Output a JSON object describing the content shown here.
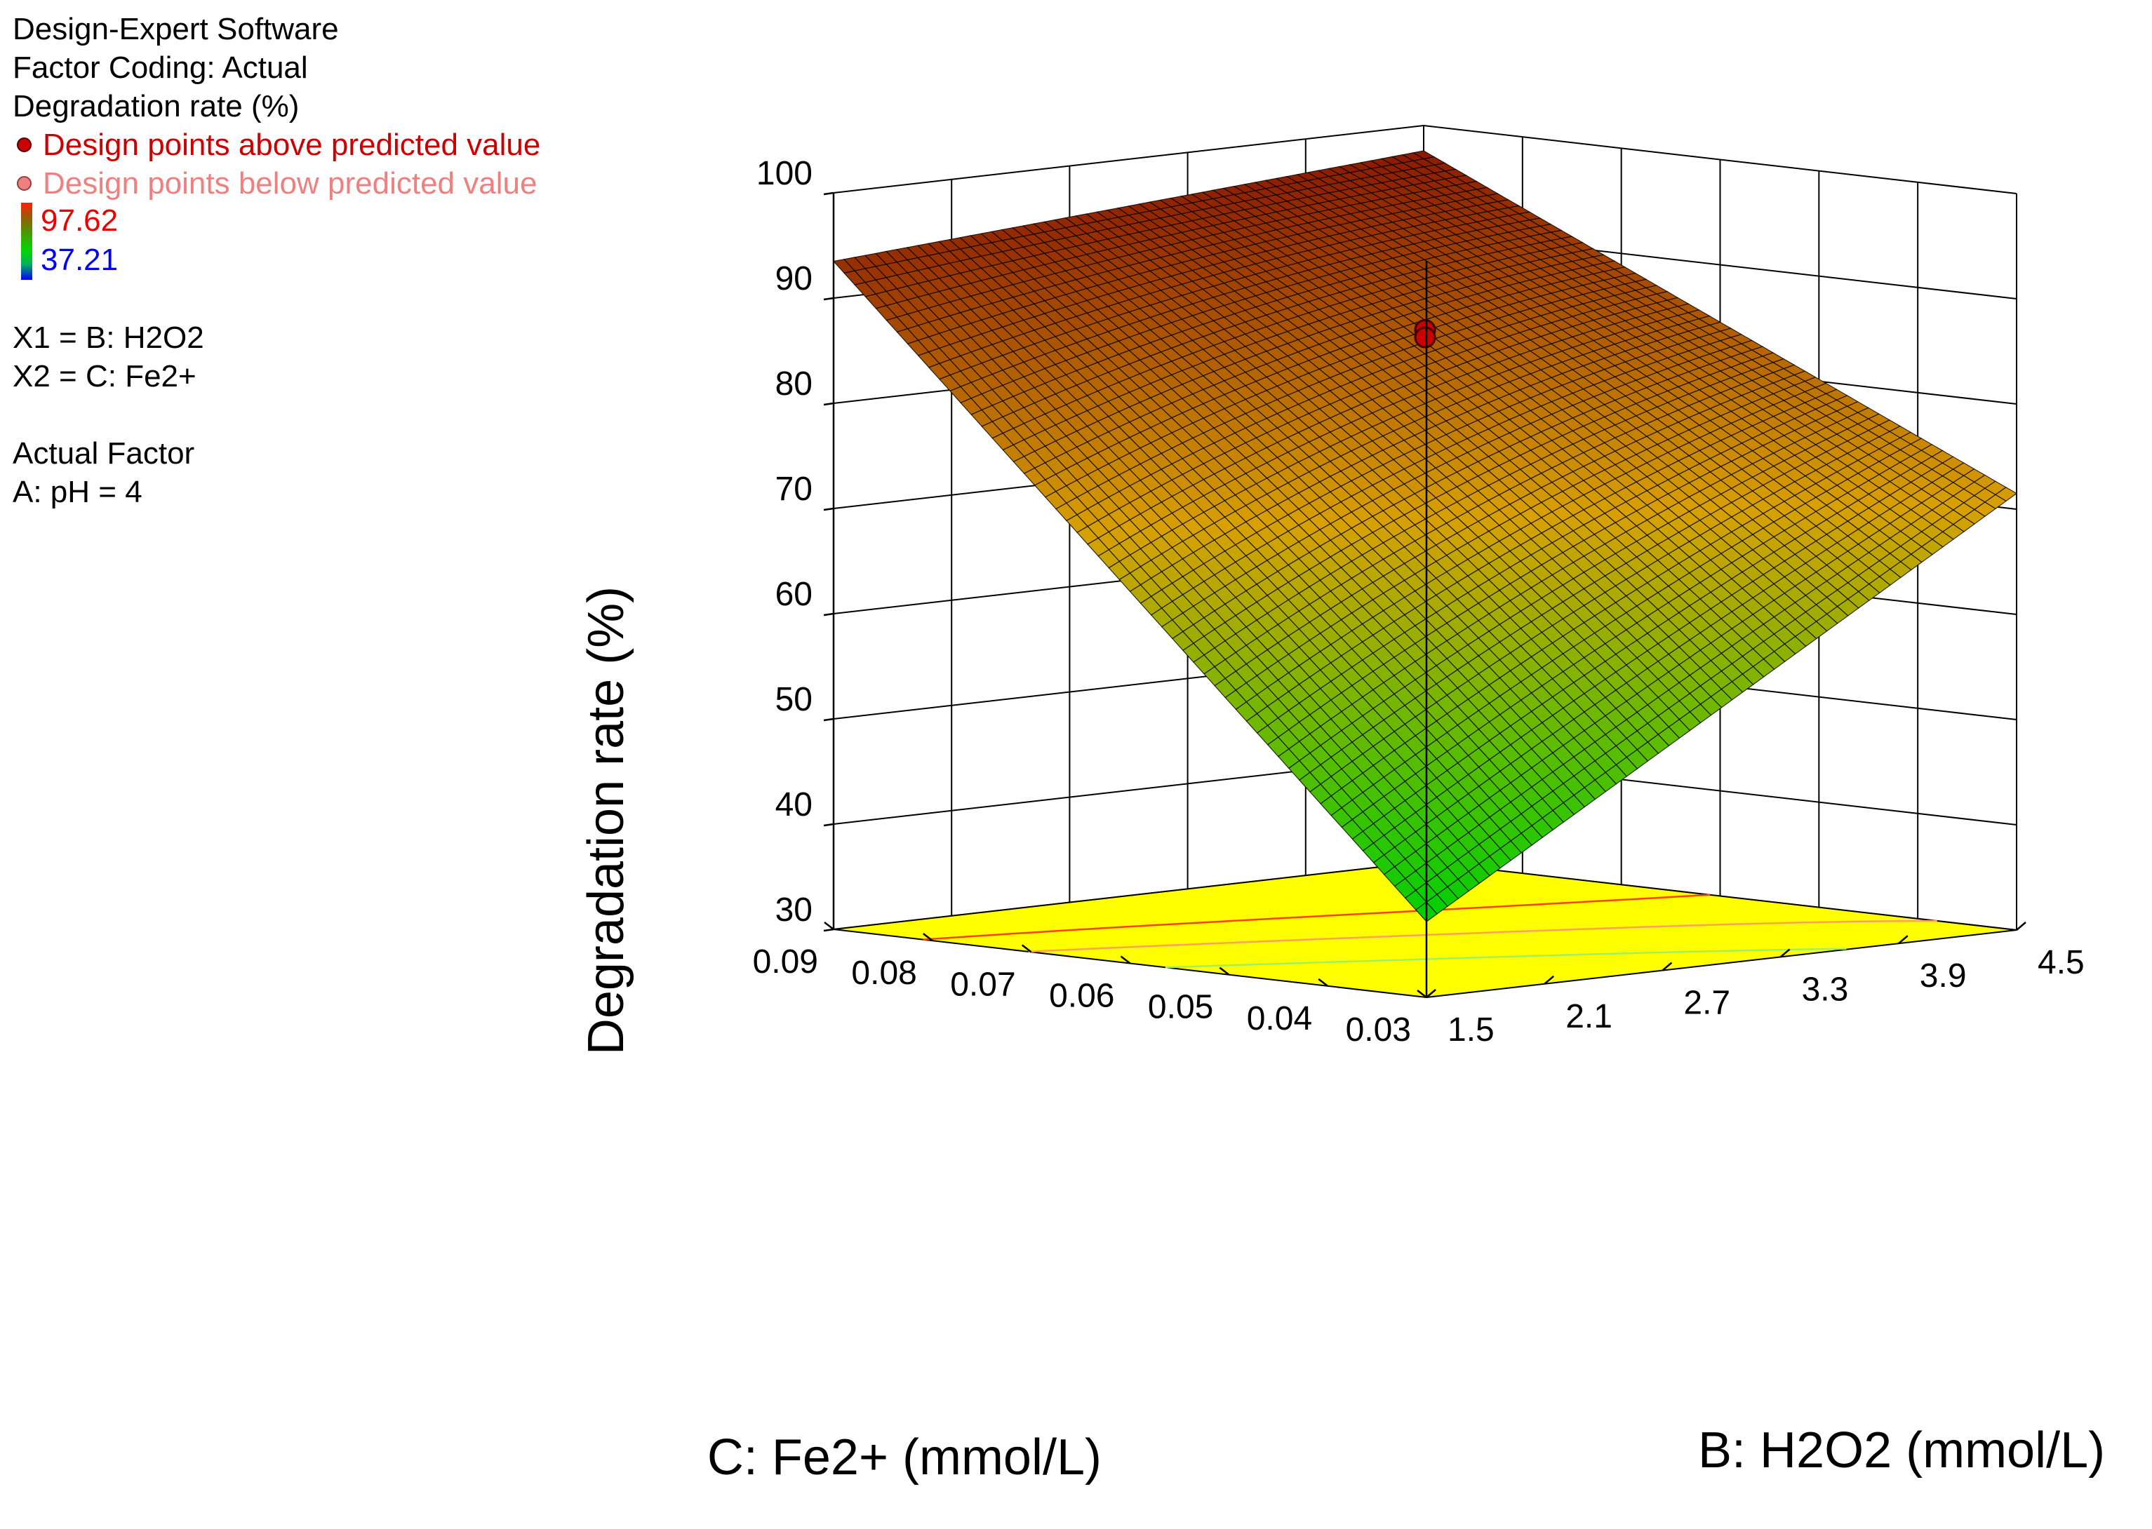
{
  "legend": {
    "software": "Design-Expert Software",
    "coding": "Factor Coding: Actual",
    "response": "Degradation rate (%)",
    "above": "Design points above predicted value",
    "below": "Design points below predicted value",
    "colorbar_max": "97.62",
    "colorbar_min": "37.21",
    "x1": "X1 = B: H2O2",
    "x2": "X2 = C: Fe2+",
    "actual_factor_title": "Actual Factor",
    "actual_factor": "A: pH = 4"
  },
  "colors": {
    "above_point": "#cc0000",
    "below_point": "#f08080",
    "colorbar_max_text": "#ee0000",
    "colorbar_min_text": "#0000ff",
    "surface_high": "#8a1a00",
    "surface_mid": "#d8a000",
    "surface_low": "#00d000",
    "floor": "#ffff00",
    "contour_high": "#ff4000",
    "contour_mid": "#ffa060",
    "contour_low": "#a0f060"
  },
  "chart_data": {
    "type": "surface",
    "x_axis": {
      "label": "B: H2O2 (mmol/L)",
      "range": [
        1.5,
        4.5
      ],
      "ticks": [
        1.5,
        2.1,
        2.7,
        3.3,
        3.9,
        4.5
      ],
      "tick_labels": [
        "1.5",
        "2.1",
        "2.7",
        "3.3",
        "3.9",
        "4.5"
      ]
    },
    "y_axis": {
      "label": "C: Fe2+ (mmol/L)",
      "range": [
        0.03,
        0.09
      ],
      "ticks": [
        0.03,
        0.04,
        0.05,
        0.06,
        0.07,
        0.08,
        0.09
      ],
      "tick_labels": [
        "0.03",
        "0.04",
        "0.05",
        "0.06",
        "0.07",
        "0.08",
        "0.09"
      ]
    },
    "z_axis": {
      "label": "Degradation rate (%)",
      "range": [
        30,
        100
      ],
      "ticks": [
        30,
        40,
        50,
        60,
        70,
        80,
        90,
        100
      ],
      "tick_labels": [
        "30",
        "40",
        "50",
        "60",
        "70",
        "80",
        "90",
        "100"
      ]
    },
    "surface_corners": [
      {
        "x": 1.5,
        "y": 0.03,
        "z": 37.2
      },
      {
        "x": 4.5,
        "y": 0.03,
        "z": 71.5
      },
      {
        "x": 1.5,
        "y": 0.09,
        "z": 93.5
      },
      {
        "x": 4.5,
        "y": 0.09,
        "z": 97.6
      }
    ],
    "design_points": [
      {
        "x": 3.0,
        "y": 0.06,
        "z": 87.0,
        "position": "above"
      },
      {
        "x": 3.0,
        "y": 0.06,
        "z": 86.3,
        "position": "above"
      }
    ],
    "colorbar_range": [
      37.21,
      97.62
    ],
    "grid": true
  }
}
